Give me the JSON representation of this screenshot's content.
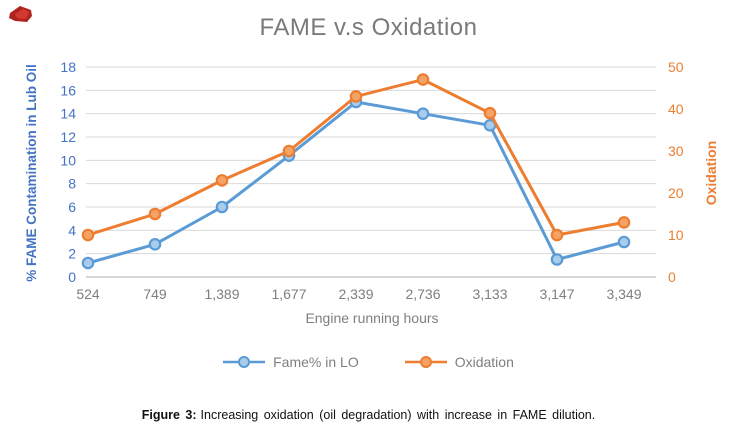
{
  "title": "FAME v.s Oxidation",
  "chart_data": {
    "type": "line",
    "categories": [
      "524",
      "749",
      "1,389",
      "1,677",
      "2,339",
      "2,736",
      "3,133",
      "3,147",
      "3,349"
    ],
    "xlabel": "Engine running hours",
    "left_axis": {
      "label": "% FAME Contamination in Lub Oil",
      "min": 0,
      "max": 18,
      "ticks": [
        0,
        2,
        4,
        6,
        8,
        10,
        12,
        14,
        16,
        18
      ],
      "color": "#4472c4"
    },
    "right_axis": {
      "label": "Oxidation",
      "min": 0,
      "max": 50,
      "ticks": [
        0,
        10,
        20,
        30,
        40,
        50
      ],
      "color": "#ed7d31"
    },
    "series": [
      {
        "name": "Fame% in LO",
        "axis": "left",
        "color": "#5b9bd5",
        "marker_fill": "#a9ccec",
        "values": [
          1.2,
          2.8,
          6,
          10.4,
          15,
          14,
          13,
          1.5,
          3
        ]
      },
      {
        "name": "Oxidation",
        "axis": "right",
        "color": "#ed7d31",
        "marker_fill": "#f5a365",
        "values": [
          10,
          15,
          23,
          30,
          43,
          47,
          39,
          10,
          13
        ]
      }
    ],
    "grid": true,
    "gridline_color": "#d9d9d9",
    "axisline_color": "#bfbfbf",
    "tick_label_color_x": "#7f7f7f",
    "legend_position": "bottom"
  },
  "caption": {
    "label": "Figure 3:",
    "text": "Increasing oxidation (oil degradation) with increase in FAME dilution."
  }
}
